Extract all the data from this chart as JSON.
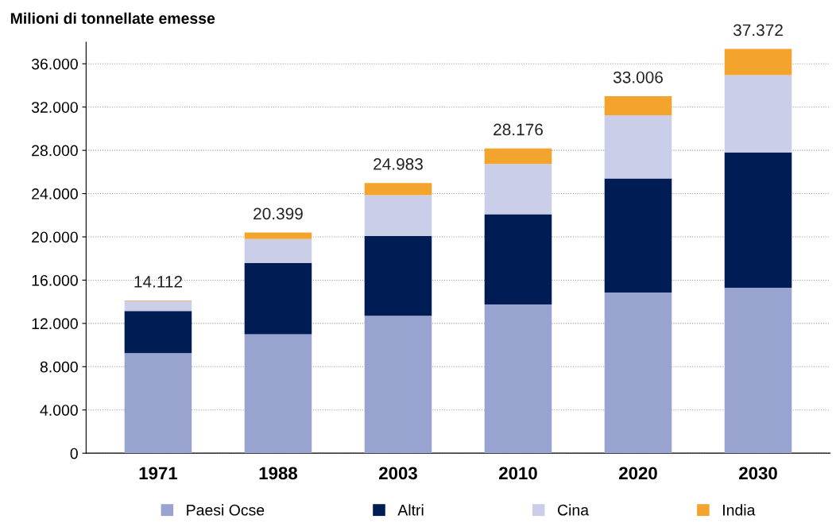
{
  "chart_data": {
    "type": "bar",
    "title": "Milioni di tonnellate emesse",
    "categories": [
      "1971",
      "1988",
      "2003",
      "2010",
      "2020",
      "2030"
    ],
    "stacked": true,
    "series": [
      {
        "name": "Paesi Ocse",
        "color": "#99a3cf",
        "values": [
          9250,
          11000,
          12700,
          13750,
          14850,
          15300
        ]
      },
      {
        "name": "Altri",
        "color": "#001c55",
        "values": [
          3900,
          6600,
          7400,
          8350,
          10550,
          12500
        ]
      },
      {
        "name": "Cina",
        "color": "#cbcee8",
        "values": [
          900,
          2200,
          3750,
          4650,
          5850,
          7150
        ]
      },
      {
        "name": "India",
        "color": "#f3a42d",
        "values": [
          62,
          599,
          1133,
          1426,
          1756,
          2422
        ]
      }
    ],
    "totals": [
      "14.112",
      "20.399",
      "24.983",
      "28.176",
      "33.006",
      "37.372"
    ],
    "ylim": [
      0,
      38000
    ],
    "yticks": [
      0,
      {
        "value": 4000,
        "label": "4.000"
      },
      {
        "value": 8000,
        "label": "8.000"
      },
      {
        "value": 12000,
        "label": "12.000"
      },
      {
        "value": 16000,
        "label": "16.000"
      },
      {
        "value": 20000,
        "label": "20.000"
      },
      {
        "value": 24000,
        "label": "24.000"
      },
      {
        "value": 28000,
        "label": "28.000"
      },
      {
        "value": 32000,
        "label": "32.000"
      },
      {
        "value": 36000,
        "label": "36.000"
      }
    ],
    "grid": "y",
    "legend": "bottom"
  }
}
